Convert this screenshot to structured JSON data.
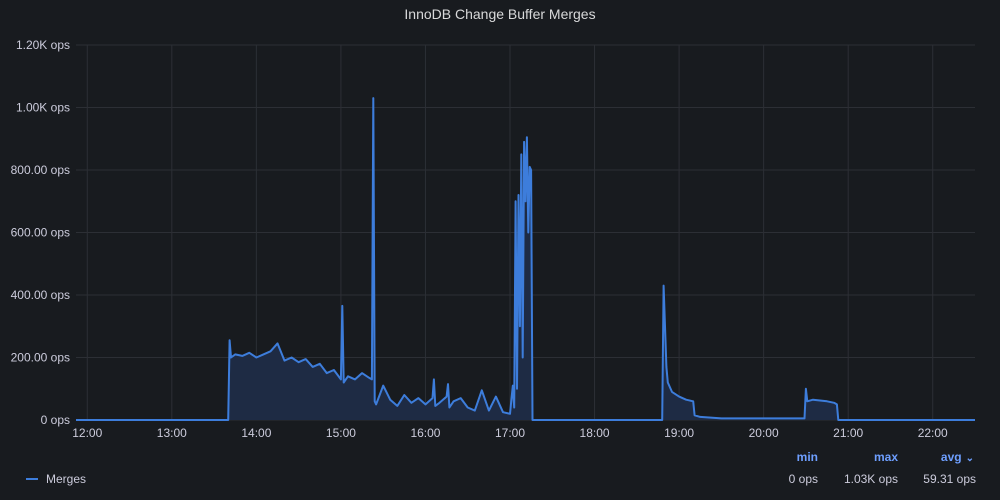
{
  "panel": {
    "title": "InnoDB Change Buffer Merges"
  },
  "legend": {
    "series_name": "Merges",
    "headers": {
      "min": "min",
      "max": "max",
      "avg": "avg"
    },
    "values": {
      "min": "0 ops",
      "max": "1.03K ops",
      "avg": "59.31 ops"
    },
    "sort_icon": "chevron-down-icon"
  },
  "colors": {
    "line": "#3d7ddb",
    "fill": "#1e2b44",
    "grid": "#2c2f35",
    "axis_text": "#ccccdc",
    "legend_header": "#6e9fff"
  },
  "chart_data": {
    "type": "area",
    "title": "InnoDB Change Buffer Merges",
    "xlabel": "",
    "ylabel": "",
    "grid": true,
    "legend_placement": "bottom",
    "x_ticks": [
      "12:00",
      "13:00",
      "14:00",
      "15:00",
      "16:00",
      "17:00",
      "18:00",
      "19:00",
      "20:00",
      "21:00",
      "22:00"
    ],
    "y_ticks": [
      "0 ops",
      "200.00 ops",
      "400.00 ops",
      "600.00 ops",
      "800.00 ops",
      "1.00K ops",
      "1.20K ops"
    ],
    "xlim": [
      "11:52",
      "22:30"
    ],
    "ylim": [
      0,
      1200
    ],
    "series": [
      {
        "name": "Merges",
        "x": [
          "11:52",
          "13:40",
          "13:41",
          "13:42",
          "13:45",
          "13:50",
          "13:55",
          "14:00",
          "14:05",
          "14:10",
          "14:15",
          "14:20",
          "14:25",
          "14:30",
          "14:35",
          "14:40",
          "14:45",
          "14:50",
          "14:55",
          "15:00",
          "15:01",
          "15:02",
          "15:05",
          "15:10",
          "15:15",
          "15:20",
          "15:22",
          "15:23",
          "15:24",
          "15:25",
          "15:30",
          "15:35",
          "15:40",
          "15:45",
          "15:50",
          "15:55",
          "16:00",
          "16:05",
          "16:06",
          "16:07",
          "16:10",
          "16:15",
          "16:16",
          "16:17",
          "16:20",
          "16:25",
          "16:30",
          "16:35",
          "16:40",
          "16:45",
          "16:50",
          "16:55",
          "17:00",
          "17:02",
          "17:03",
          "17:04",
          "17:05",
          "17:06",
          "17:07",
          "17:08",
          "17:09",
          "17:10",
          "17:11",
          "17:12",
          "17:13",
          "17:14",
          "17:15",
          "17:16",
          "17:17",
          "17:18",
          "17:19",
          "17:20",
          "17:21",
          "17:22",
          "17:23",
          "18:47",
          "18:48",
          "18:49",
          "18:50",
          "18:51",
          "18:52",
          "18:55",
          "19:00",
          "19:05",
          "19:10",
          "19:11",
          "19:15",
          "19:30",
          "20:00",
          "20:28",
          "20:29",
          "20:30",
          "20:31",
          "20:35",
          "20:45",
          "20:50",
          "20:52",
          "20:53",
          "22:30"
        ],
        "values": [
          0,
          0,
          255,
          200,
          210,
          205,
          215,
          200,
          210,
          220,
          245,
          190,
          200,
          185,
          195,
          170,
          180,
          150,
          160,
          130,
          365,
          120,
          140,
          130,
          150,
          135,
          130,
          1030,
          60,
          50,
          110,
          65,
          45,
          80,
          55,
          70,
          50,
          70,
          130,
          45,
          55,
          75,
          115,
          40,
          60,
          70,
          40,
          30,
          95,
          30,
          75,
          25,
          20,
          110,
          40,
          700,
          100,
          720,
          300,
          850,
          200,
          890,
          700,
          905,
          600,
          810,
          800,
          0,
          0,
          0,
          0,
          0,
          0,
          0,
          0,
          0,
          0,
          430,
          300,
          170,
          120,
          90,
          75,
          65,
          60,
          15,
          10,
          5,
          5,
          5,
          5,
          100,
          60,
          65,
          60,
          55,
          50,
          0,
          0
        ]
      }
    ]
  }
}
